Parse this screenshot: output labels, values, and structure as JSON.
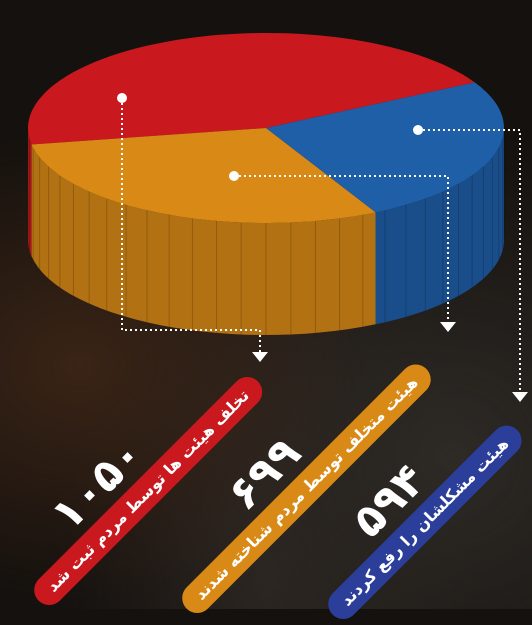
{
  "chart_data": {
    "type": "pie",
    "style": "3d",
    "legend": "rotated callout labels, lower area",
    "slices": [
      {
        "label": "تخلف هیئت ها توسط مردم ثبت شد",
        "value": 1050,
        "display_value": "۱۰۵۰",
        "color": "#c9191f"
      },
      {
        "label": "هیئت متخلف توسط مردم شناخته شدند",
        "value": 699,
        "display_value": "۶۹۹",
        "color": "#d98a16"
      },
      {
        "label": "هیئت مشکلشان را رفع کردند",
        "value": 594,
        "display_value": "۵۹۴",
        "color": "#1f5fa8"
      }
    ]
  }
}
